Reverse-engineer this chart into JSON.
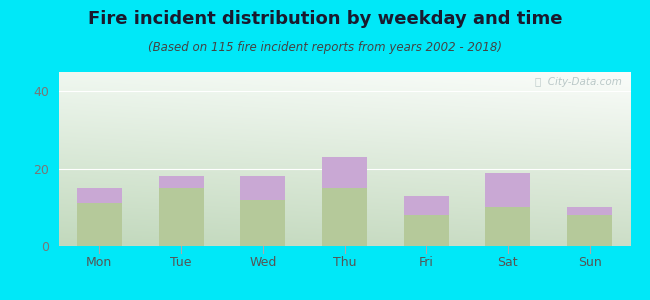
{
  "title": "Fire incident distribution by weekday and time",
  "subtitle": "(Based on 115 fire incident reports from years 2002 - 2018)",
  "categories": [
    "Mon",
    "Tue",
    "Wed",
    "Thu",
    "Fri",
    "Sat",
    "Sun"
  ],
  "pm_values": [
    11,
    15,
    12,
    15,
    8,
    10,
    8
  ],
  "am_values": [
    4,
    3,
    6,
    8,
    5,
    9,
    2
  ],
  "am_color": "#c9a8d4",
  "pm_color": "#b5c99a",
  "background_outer": "#00e8f8",
  "ylim": [
    0,
    45
  ],
  "yticks": [
    0,
    20,
    40
  ],
  "bar_width": 0.55,
  "title_fontsize": 13,
  "subtitle_fontsize": 8.5,
  "tick_fontsize": 9,
  "legend_fontsize": 9,
  "watermark": "ⓘ  City-Data.com"
}
